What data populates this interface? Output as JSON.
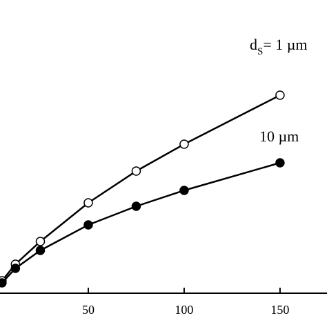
{
  "chart_data": {
    "type": "line",
    "x": [
      5,
      12,
      25,
      50,
      75,
      100,
      150
    ],
    "series": [
      {
        "name": "1 µm",
        "color": "#000000",
        "marker": "open",
        "values": [
          0.18,
          0.42,
          0.75,
          1.31,
          1.77,
          2.16,
          2.87
        ]
      },
      {
        "name": "10 µm",
        "color": "#000000",
        "marker": "filled",
        "values": [
          0.15,
          0.36,
          0.62,
          0.99,
          1.26,
          1.49,
          1.89
        ]
      }
    ],
    "annotations": [
      {
        "text": "d",
        "sub": "S",
        "rest": "= 1 µm"
      },
      {
        "text": "10 µm"
      }
    ],
    "xlim": [
      3.96,
      174.5
    ],
    "xticks": [
      50,
      100,
      150
    ],
    "ylim": [
      0,
      4.25
    ]
  }
}
